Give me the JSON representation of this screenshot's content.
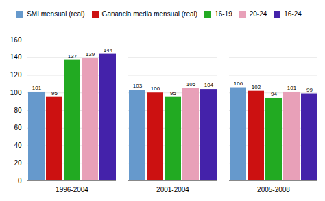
{
  "chart_data": {
    "type": "bar",
    "categories": [
      "1996-2004",
      "2001-2004",
      "2005-2008"
    ],
    "series": [
      {
        "name": "SMI mensual (real)",
        "color": "#6699cc",
        "values": [
          101,
          103,
          106
        ]
      },
      {
        "name": "Ganancia media mensual (real)",
        "color": "#cc1111",
        "values": [
          95,
          100,
          102
        ]
      },
      {
        "name": "16-19",
        "color": "#22aa22",
        "values": [
          137,
          95,
          94
        ]
      },
      {
        "name": "20-24",
        "color": "#e8a0b8",
        "values": [
          139,
          105,
          101
        ]
      },
      {
        "name": "16-24",
        "color": "#4422aa",
        "values": [
          144,
          104,
          99
        ]
      }
    ],
    "ylim": [
      0,
      160
    ],
    "yticks": [
      0,
      20,
      40,
      60,
      80,
      100,
      120,
      140,
      160
    ],
    "grid": true,
    "legend": "top",
    "data_labels": true
  }
}
